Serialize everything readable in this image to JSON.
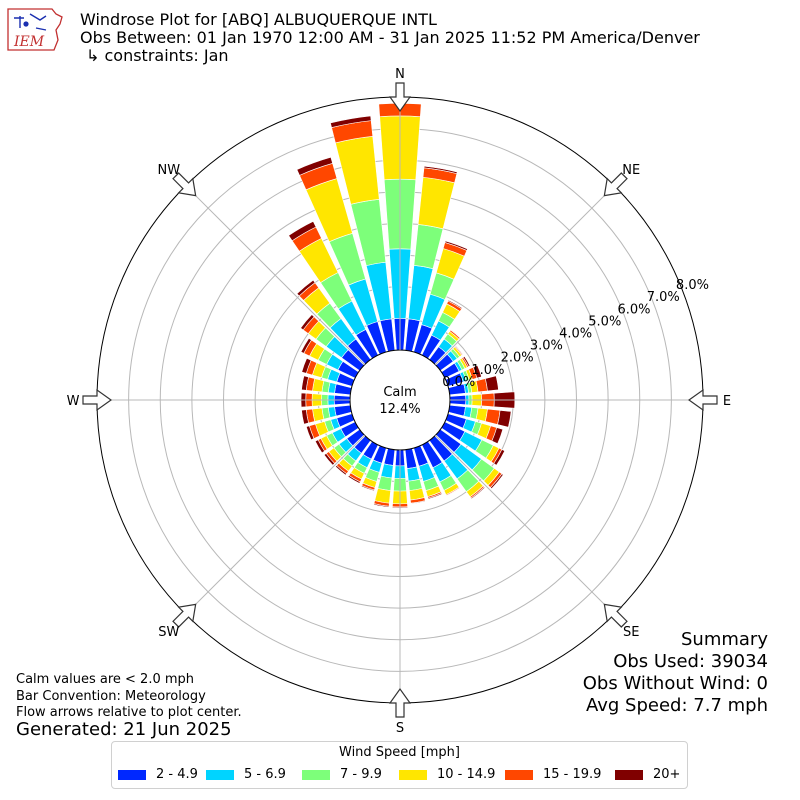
{
  "header": {
    "logo_text": "IEM",
    "title_line1": "Windrose Plot for [ABQ] ALBUQUERQUE INTL",
    "title_line2": "Obs Between: 01 Jan 1970 12:00 AM - 31 Jan 2025 11:52 PM America/Denver",
    "title_line3": "↳ constraints: Jan"
  },
  "notes": {
    "calm_def": "Calm values are < 2.0 mph",
    "bar_convention": "Bar Convention: Meteorology",
    "flow_arrows": "Flow arrows relative to plot center.",
    "generated": "Generated: 21 Jun 2025"
  },
  "summary": {
    "heading": "Summary",
    "obs_used": "Obs Used: 39034",
    "obs_without_wind": "Obs Without Wind: 0",
    "avg_speed": "Avg Speed: 7.7 mph"
  },
  "legend": {
    "title": "Wind Speed [mph]",
    "items": [
      {
        "label": "2 - 4.9",
        "color": "#0028ff"
      },
      {
        "label": "5 - 6.9",
        "color": "#00d4ff"
      },
      {
        "label": "7 - 9.9",
        "color": "#7dff7a"
      },
      {
        "label": "10 - 14.9",
        "color": "#ffe600"
      },
      {
        "label": "15 - 19.9",
        "color": "#ff4700"
      },
      {
        "label": "20+",
        "color": "#800000"
      }
    ]
  },
  "chart_data": {
    "type": "windrose",
    "calm_label": "Calm",
    "calm_value": "12.4%",
    "calm_percent": 12.4,
    "radial_unit": "%",
    "radial_ticks": [
      0,
      1,
      2,
      3,
      4,
      5,
      6,
      7,
      8
    ],
    "radial_tick_labels": [
      "0.0%",
      "1.0%",
      "2.0%",
      "3.0%",
      "4.0%",
      "5.0%",
      "6.0%",
      "7.0%",
      "8.0%"
    ],
    "compass_labels": [
      "N",
      "NE",
      "E",
      "SE",
      "S",
      "SW",
      "W",
      "NW"
    ],
    "direction_bin_width_deg": 10,
    "speed_bins": [
      "2 - 4.9",
      "5 - 6.9",
      "7 - 9.9",
      "10 - 14.9",
      "15 - 19.9",
      "20+"
    ],
    "series": [
      {
        "dir": 0,
        "values": [
          1.0,
          2.2,
          2.2,
          2.0,
          0.4,
          0.0
        ]
      },
      {
        "dir": 10,
        "values": [
          1.0,
          1.7,
          1.3,
          1.5,
          0.3,
          0.05
        ]
      },
      {
        "dir": 20,
        "values": [
          0.9,
          1.0,
          0.7,
          0.8,
          0.2,
          0.05
        ]
      },
      {
        "dir": 30,
        "values": [
          0.7,
          0.5,
          0.3,
          0.3,
          0.1,
          0.03
        ]
      },
      {
        "dir": 40,
        "values": [
          0.5,
          0.3,
          0.2,
          0.1,
          0.05,
          0.02
        ]
      },
      {
        "dir": 50,
        "values": [
          0.5,
          0.15,
          0.1,
          0.08,
          0.03,
          0.02
        ]
      },
      {
        "dir": 60,
        "values": [
          0.5,
          0.1,
          0.1,
          0.08,
          0.05,
          0.05
        ]
      },
      {
        "dir": 70,
        "values": [
          0.5,
          0.1,
          0.1,
          0.1,
          0.15,
          0.15
        ]
      },
      {
        "dir": 80,
        "values": [
          0.5,
          0.1,
          0.1,
          0.2,
          0.3,
          0.35
        ]
      },
      {
        "dir": 90,
        "values": [
          0.5,
          0.1,
          0.1,
          0.3,
          0.4,
          0.65
        ]
      },
      {
        "dir": 100,
        "values": [
          0.5,
          0.2,
          0.2,
          0.3,
          0.4,
          0.35
        ]
      },
      {
        "dir": 110,
        "values": [
          0.6,
          0.3,
          0.2,
          0.3,
          0.2,
          0.2
        ]
      },
      {
        "dir": 120,
        "values": [
          0.7,
          0.6,
          0.4,
          0.2,
          0.1,
          0.1
        ]
      },
      {
        "dir": 130,
        "values": [
          0.8,
          0.8,
          0.5,
          0.2,
          0.1,
          0.05
        ]
      },
      {
        "dir": 140,
        "values": [
          0.8,
          0.7,
          0.5,
          0.2,
          0.05,
          0.03
        ]
      },
      {
        "dir": 150,
        "values": [
          0.8,
          0.5,
          0.3,
          0.15,
          0.03,
          0.02
        ]
      },
      {
        "dir": 160,
        "values": [
          0.6,
          0.5,
          0.3,
          0.2,
          0.05,
          0.03
        ]
      },
      {
        "dir": 170,
        "values": [
          0.6,
          0.4,
          0.3,
          0.3,
          0.1,
          0.02
        ]
      },
      {
        "dir": 180,
        "values": [
          0.5,
          0.4,
          0.4,
          0.4,
          0.1,
          0.03
        ]
      },
      {
        "dir": 190,
        "values": [
          0.5,
          0.4,
          0.4,
          0.4,
          0.1,
          0.03
        ]
      },
      {
        "dir": 200,
        "values": [
          0.5,
          0.3,
          0.3,
          0.2,
          0.08,
          0.03
        ]
      },
      {
        "dir": 210,
        "values": [
          0.5,
          0.3,
          0.2,
          0.2,
          0.1,
          0.05
        ]
      },
      {
        "dir": 220,
        "values": [
          0.5,
          0.3,
          0.2,
          0.2,
          0.1,
          0.05
        ]
      },
      {
        "dir": 230,
        "values": [
          0.5,
          0.3,
          0.2,
          0.2,
          0.1,
          0.08
        ]
      },
      {
        "dir": 240,
        "values": [
          0.5,
          0.3,
          0.2,
          0.2,
          0.1,
          0.1
        ]
      },
      {
        "dir": 250,
        "values": [
          0.5,
          0.2,
          0.2,
          0.3,
          0.2,
          0.1
        ]
      },
      {
        "dir": 260,
        "values": [
          0.5,
          0.2,
          0.2,
          0.3,
          0.2,
          0.15
        ]
      },
      {
        "dir": 270,
        "values": [
          0.5,
          0.2,
          0.2,
          0.3,
          0.2,
          0.15
        ]
      },
      {
        "dir": 280,
        "values": [
          0.5,
          0.2,
          0.2,
          0.3,
          0.2,
          0.15
        ]
      },
      {
        "dir": 290,
        "values": [
          0.5,
          0.3,
          0.2,
          0.3,
          0.2,
          0.15
        ]
      },
      {
        "dir": 300,
        "values": [
          0.6,
          0.4,
          0.3,
          0.3,
          0.2,
          0.1
        ]
      },
      {
        "dir": 310,
        "values": [
          0.7,
          0.6,
          0.4,
          0.3,
          0.2,
          0.1
        ]
      },
      {
        "dir": 320,
        "values": [
          0.8,
          0.8,
          0.6,
          0.6,
          0.2,
          0.1
        ]
      },
      {
        "dir": 330,
        "values": [
          0.9,
          1.0,
          1.0,
          1.2,
          0.4,
          0.2
        ]
      },
      {
        "dir": 340,
        "values": [
          1.0,
          1.4,
          1.5,
          1.8,
          0.5,
          0.2
        ]
      },
      {
        "dir": 350,
        "values": [
          1.0,
          1.8,
          2.0,
          2.0,
          0.5,
          0.15
        ]
      }
    ]
  }
}
